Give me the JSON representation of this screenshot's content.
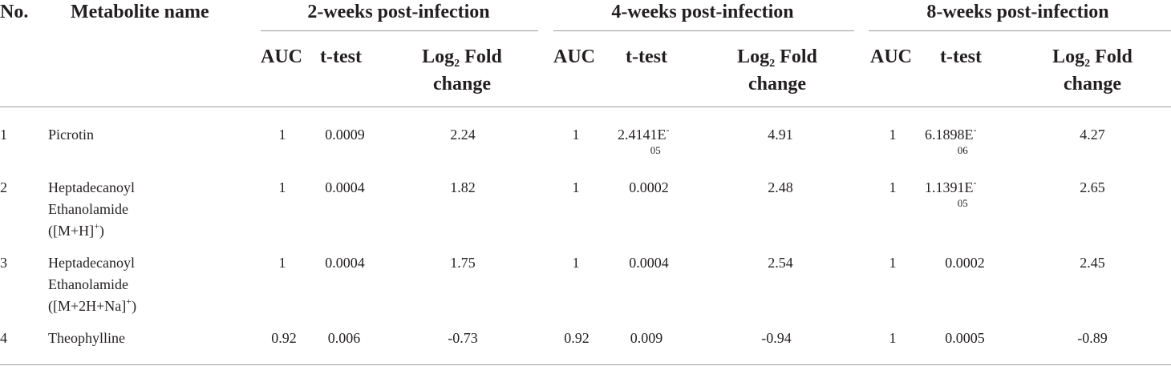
{
  "headers": {
    "no": "No.",
    "name": "Metabolite name",
    "groups": [
      "2-weeks post-infection",
      "4-weeks post-infection",
      "8-weeks post-infection"
    ],
    "auc": "AUC",
    "ttest": "t-test",
    "log_prefix": "Log",
    "log_sub": "2",
    "fold": "Fold",
    "change": "change"
  },
  "rows": [
    {
      "no": "1",
      "name": [
        "Picrotin"
      ],
      "w2": {
        "auc": "1",
        "t": "0.0009",
        "t_sub": "",
        "fc": "2.24"
      },
      "w4": {
        "auc": "1",
        "t": "2.4141E",
        "t_sup": "-",
        "t_sub": "05",
        "fc": "4.91"
      },
      "w8": {
        "auc": "1",
        "t": "6.1898E",
        "t_sup": "-",
        "t_sub": "06",
        "fc": "4.27"
      }
    },
    {
      "no": "2",
      "name": [
        "Heptadecanoyl",
        "Ethanolamide",
        "([M+H]",
        "+",
        ")"
      ],
      "w2": {
        "auc": "1",
        "t": "0.0004",
        "fc": "1.82"
      },
      "w4": {
        "auc": "1",
        "t": "0.0002",
        "fc": "2.48"
      },
      "w8": {
        "auc": "1",
        "t": "1.1391E",
        "t_sup": "-",
        "t_sub": "05",
        "fc": "2.65"
      }
    },
    {
      "no": "3",
      "name": [
        "Heptadecanoyl",
        "Ethanolamide",
        "([M+2H+Na]",
        "+",
        ")"
      ],
      "w2": {
        "auc": "1",
        "t": "0.0004",
        "fc": "1.75"
      },
      "w4": {
        "auc": "1",
        "t": "0.0004",
        "fc": "2.54"
      },
      "w8": {
        "auc": "1",
        "t": "0.0002",
        "fc": "2.45"
      }
    },
    {
      "no": "4",
      "name": [
        "Theophylline"
      ],
      "w2": {
        "auc": "0.92",
        "t": "0.006",
        "fc": "-0.73"
      },
      "w4": {
        "auc": "0.92",
        "t": "0.009",
        "fc": "-0.94"
      },
      "w8": {
        "auc": "1",
        "t": "0.0005",
        "fc": "-0.89"
      }
    }
  ]
}
